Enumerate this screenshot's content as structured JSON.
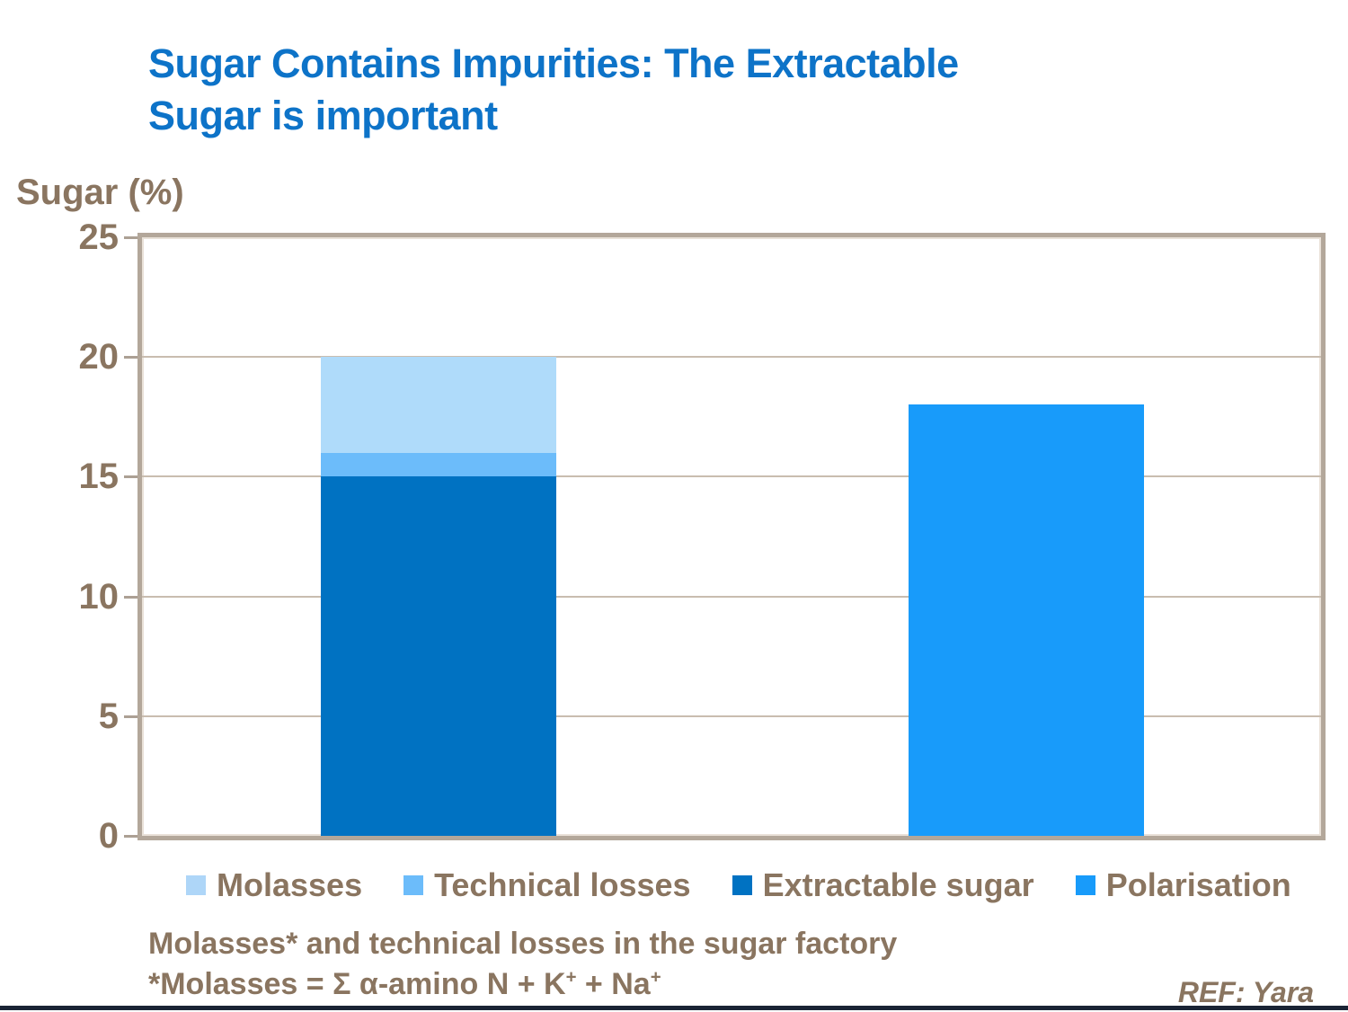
{
  "title": {
    "line1": "Sugar Contains Impurities: The Extractable",
    "line2": "Sugar is important",
    "color": "#0D73C8"
  },
  "chart_data": {
    "type": "bar",
    "stacked": true,
    "title": "Sugar Contains Impurities: The Extractable Sugar is important",
    "ylabel": "Sugar (%)",
    "xlabel": "",
    "ylim": [
      0,
      25
    ],
    "yticks": [
      0,
      5,
      10,
      15,
      20,
      25
    ],
    "grid": true,
    "legend_position": "bottom",
    "categories": [
      "",
      ""
    ],
    "bars": [
      {
        "total": 20,
        "segments": [
          {
            "name": "Extractable sugar",
            "value": 15,
            "color": "#0072C2"
          },
          {
            "name": "Technical losses",
            "value": 1,
            "color": "#6CBCFA"
          },
          {
            "name": "Molasses",
            "value": 4,
            "color": "#AFDBFA"
          }
        ]
      },
      {
        "total": 18,
        "segments": [
          {
            "name": "Polarisation",
            "value": 18,
            "color": "#189BFA"
          }
        ]
      }
    ],
    "legend": [
      {
        "label": "Molasses",
        "color": "#AED6F8"
      },
      {
        "label": "Technical losses",
        "color": "#6CBCFA"
      },
      {
        "label": "Extractable sugar",
        "color": "#0072C2"
      },
      {
        "label": "Polarisation",
        "color": "#189BFA"
      }
    ]
  },
  "footnote": {
    "line1": "Molasses* and technical losses in the sugar factory",
    "line2_prefix": "*Molasses = Σ α-amino N + K",
    "line2_sup1": "+",
    "line2_mid": " + Na",
    "line2_sup2": "+"
  },
  "ref": {
    "text": "REF: Yara"
  },
  "frame_colors": {
    "axis_frame": "#B3A79A",
    "gridline": "#C9BDAF",
    "text_brown": "#8A7560",
    "title_blue": "#0D73C8",
    "bottom_bar": "#1A2435"
  }
}
